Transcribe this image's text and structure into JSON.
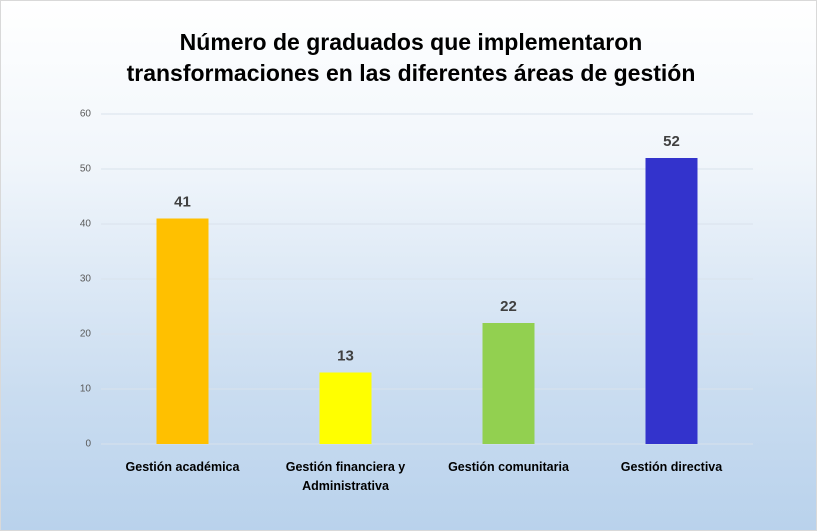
{
  "chart_data": {
    "type": "bar",
    "title": "Número de graduados que implementaron transformaciones en las diferentes áreas  de gestión",
    "categories": [
      "Gestión académica",
      "Gestión financiera y Administrativa",
      "Gestión comunitaria",
      "Gestión directiva"
    ],
    "values": [
      41,
      13,
      22,
      52
    ],
    "colors": [
      "#FFC000",
      "#FFFF00",
      "#92D050",
      "#3333CC"
    ],
    "ylim": [
      0,
      60
    ],
    "yticks": [
      0,
      10,
      20,
      30,
      40,
      50,
      60
    ],
    "grid": true
  }
}
